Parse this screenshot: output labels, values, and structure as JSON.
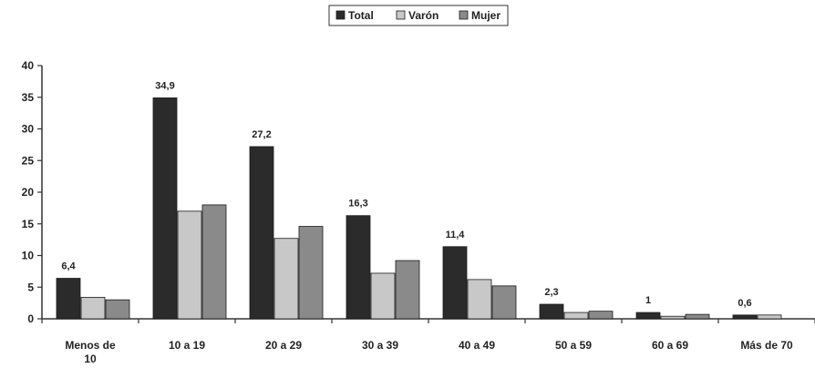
{
  "chart_data": {
    "type": "bar",
    "categories": [
      [
        "Menos de",
        "10"
      ],
      [
        "10 a 19"
      ],
      [
        "20 a 29"
      ],
      [
        "30 a 39"
      ],
      [
        "40 a 49"
      ],
      [
        "50 a 59"
      ],
      [
        "60 a 69"
      ],
      [
        "Más de 70"
      ]
    ],
    "series": [
      {
        "name": "Total",
        "color": "#2b2b2b",
        "values": [
          6.4,
          34.9,
          27.2,
          16.3,
          11.4,
          2.3,
          1,
          0.6
        ]
      },
      {
        "name": "Varón",
        "color": "#c8c8c8",
        "values": [
          3.4,
          17.0,
          12.7,
          7.2,
          6.2,
          1.0,
          0.4,
          0.6
        ]
      },
      {
        "name": "Mujer",
        "color": "#8a8a8a",
        "values": [
          3.0,
          18.0,
          14.6,
          9.2,
          5.2,
          1.2,
          0.7,
          0.0
        ]
      }
    ],
    "data_labels": [
      "6,4",
      "34,9",
      "27,2",
      "16,3",
      "11,4",
      "2,3",
      "1",
      "0,6"
    ],
    "yticks": [
      "0",
      "5",
      "10",
      "15",
      "20",
      "25",
      "30",
      "35",
      "40"
    ],
    "ylim": [
      0,
      40
    ],
    "grid": false,
    "legend_position": "top-center"
  }
}
